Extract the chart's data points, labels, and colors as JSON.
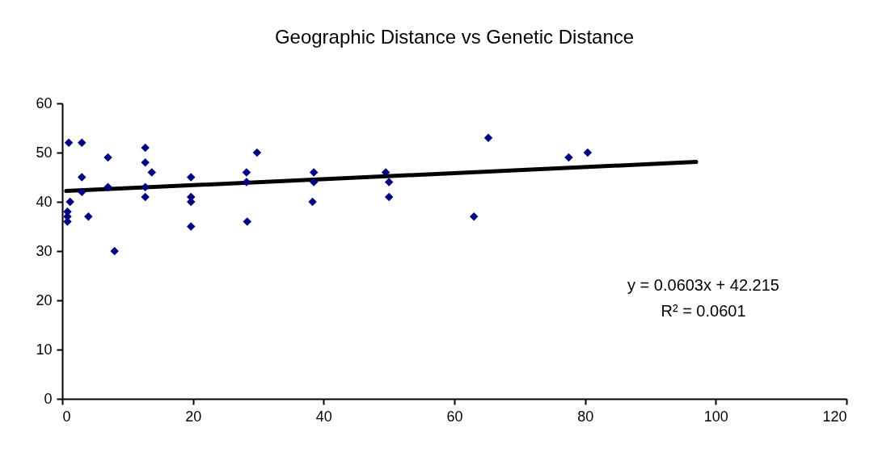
{
  "chart_data": {
    "type": "scatter",
    "title": "Geographic Distance vs Genetic Distance",
    "series": [
      {
        "color": "#000080",
        "marker": "diamond",
        "x": [
          1,
          3,
          7,
          12.7,
          12.7,
          13.7,
          3,
          3,
          7,
          12.7,
          12.7,
          1.2,
          0.8,
          0.8,
          0.8,
          4,
          8,
          19.7,
          19.7,
          19.7,
          19.7,
          28.2,
          28.2,
          29.8,
          28.3,
          38.5,
          38.5,
          38.3,
          49.5,
          50,
          50,
          63,
          65.2,
          77.5,
          80.4
        ],
        "values": [
          52,
          52,
          49,
          51,
          48,
          46,
          45,
          42,
          43,
          43,
          41,
          40,
          38,
          37,
          36,
          37,
          30,
          45,
          41,
          40,
          35,
          46,
          44,
          50,
          36,
          46,
          44,
          40,
          46,
          44,
          41,
          37,
          53,
          49,
          50
        ]
      },
      {
        "type": "line",
        "color": "#000000",
        "line_style": "solid",
        "x": [
          0.6,
          97
        ],
        "values": [
          42.2,
          48.1
        ]
      }
    ],
    "xlim": [
      0,
      120
    ],
    "xticks": [
      0,
      20,
      40,
      60,
      80,
      100,
      120
    ],
    "ylim": [
      0,
      60
    ],
    "yticks": [
      0,
      10,
      20,
      30,
      40,
      50,
      60
    ],
    "grid": false,
    "annotations": [
      "y = 0.0603x + 42.215",
      "R² = 0.0601"
    ]
  }
}
